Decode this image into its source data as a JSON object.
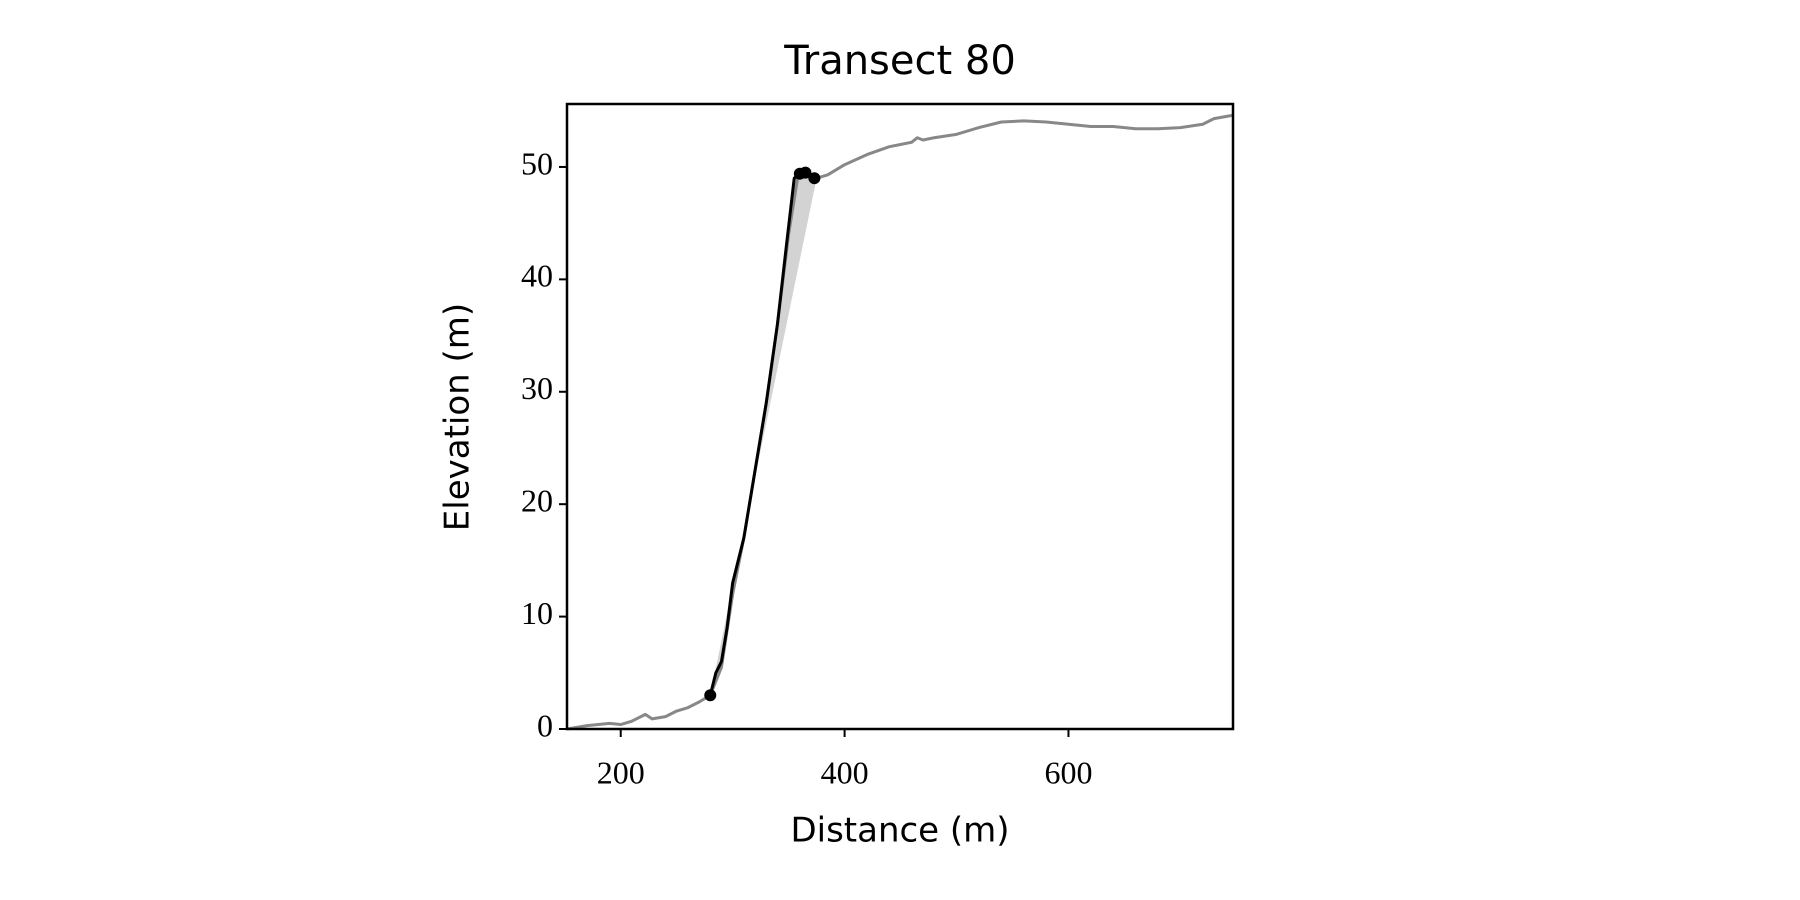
{
  "chart_data": {
    "type": "line",
    "title": "Transect 80",
    "xlabel": "Distance (m)",
    "ylabel": "Elevation (m)",
    "xlim": [
      152,
      747
    ],
    "ylim": [
      0,
      55.6
    ],
    "xticks": [
      200,
      400,
      600
    ],
    "yticks": [
      0,
      10,
      20,
      30,
      40,
      50
    ],
    "grid": false,
    "series": [
      {
        "color": "#888888",
        "line": true,
        "marker": false,
        "x": [
          152,
          170,
          190,
          200,
          210,
          222,
          228,
          240,
          250,
          260,
          270,
          280,
          290,
          300,
          310,
          320,
          330,
          340,
          350,
          358,
          365,
          375,
          385,
          400,
          420,
          440,
          460,
          465,
          470,
          480,
          500,
          520,
          540,
          560,
          580,
          600,
          620,
          640,
          660,
          680,
          700,
          720,
          730,
          747
        ],
        "values": [
          0,
          0.3,
          0.5,
          0.4,
          0.7,
          1.3,
          0.9,
          1.1,
          1.6,
          1.9,
          2.4,
          3.0,
          5.5,
          12,
          17,
          23,
          29,
          36,
          44,
          49,
          49.4,
          49.0,
          49.3,
          50.2,
          51.1,
          51.8,
          52.2,
          52.6,
          52.4,
          52.6,
          52.9,
          53.5,
          54.0,
          54.1,
          54.0,
          53.8,
          53.6,
          53.6,
          53.4,
          53.4,
          53.5,
          53.8,
          54.3,
          54.6
        ]
      },
      {
        "color": "#000000",
        "line": true,
        "marker": false,
        "fill": "#d3d3d3",
        "x": [
          280,
          285,
          290,
          295,
          300,
          310,
          320,
          330,
          340,
          348,
          355,
          360,
          365,
          370,
          375
        ],
        "values": [
          3,
          5,
          6,
          9,
          13,
          17,
          23,
          29,
          36,
          43,
          49,
          49.4,
          49.5,
          49.2,
          49.0
        ]
      },
      {
        "color": "#000000",
        "line": false,
        "marker": true,
        "x": [
          280,
          360,
          365,
          373
        ],
        "values": [
          3,
          49.4,
          49.5,
          49.0
        ]
      }
    ]
  }
}
